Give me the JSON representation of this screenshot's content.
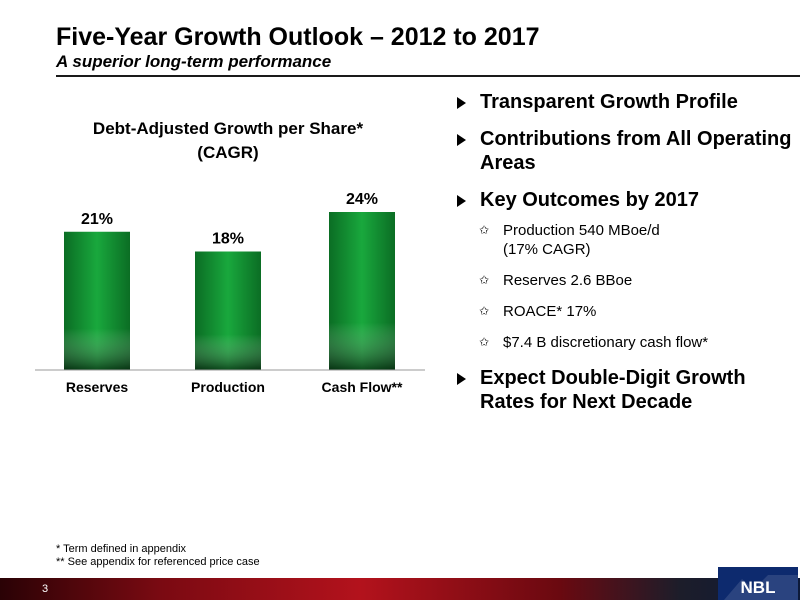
{
  "header": {
    "title": "Five-Year Growth Outlook – 2012 to 2017",
    "subtitle": "A superior long-term performance"
  },
  "chart_data": {
    "type": "bar",
    "title": "Debt-Adjusted Growth per Share*",
    "subtitle": "(CAGR)",
    "categories": [
      "Reserves",
      "Production",
      "Cash Flow**"
    ],
    "values": [
      21,
      18,
      24
    ],
    "value_labels": [
      "21%",
      "18%",
      "24%"
    ],
    "ylim": [
      0,
      24
    ],
    "grid": false,
    "bar_color": "#0f8a2e"
  },
  "bullets": {
    "b1": "Transparent Growth Profile",
    "b2": "Contributions from All Operating Areas",
    "b3": "Key Outcomes by 2017",
    "sub": [
      {
        "line1": "Production 540 MBoe/d",
        "line2": "(17% CAGR)"
      },
      {
        "line1": "Reserves 2.6 BBoe"
      },
      {
        "line1": "ROACE* 17%"
      },
      {
        "line1": "$7.4 B discretionary cash flow*"
      }
    ],
    "sub_marker": "✩",
    "b4": "Expect Double-Digit Growth Rates for Next Decade"
  },
  "footnotes": {
    "f1": "* Term defined in appendix",
    "f2": "** See appendix for referenced price case"
  },
  "footer": {
    "page_number": "3",
    "logo_text": "NBL"
  }
}
